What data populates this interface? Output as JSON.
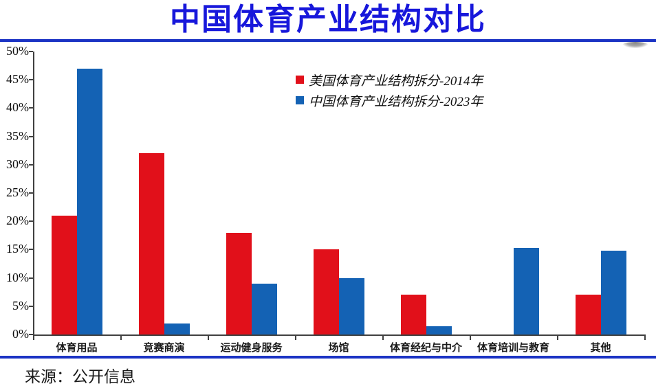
{
  "page": {
    "title": "中国体育产业结构对比",
    "source": "来源：公开信息"
  },
  "colors": {
    "title_blue": "#1717db",
    "rule_blue": "#1b33c4",
    "us_red": "#e1101a",
    "cn_blue": "#1462b4",
    "axis_gray": "#3f3f3f"
  },
  "chart_data": {
    "type": "bar",
    "title": "中国体育产业结构对比",
    "categories": [
      "体育用品",
      "竞赛商演",
      "运动健身服务",
      "场馆",
      "体育经纪与中介",
      "体育培训与教育",
      "其他"
    ],
    "series": [
      {
        "name": "美国体育产业结构拆分-2014年",
        "color": "#e1101a",
        "values": [
          21,
          32,
          18,
          15,
          7,
          0,
          7
        ]
      },
      {
        "name": "中国体育产业结构拆分-2023年",
        "color": "#1462b4",
        "values": [
          47,
          2,
          9,
          10,
          1.5,
          15.3,
          14.8
        ]
      }
    ],
    "xlabel": "",
    "ylabel": "",
    "ylim": [
      0,
      50
    ],
    "ytick_step": 5,
    "ytick_labels": [
      "0%",
      "5%",
      "10%",
      "15%",
      "20%",
      "25%",
      "30%",
      "35%",
      "40%",
      "45%",
      "50%"
    ],
    "grid": false,
    "legend_position": "inside-top-center"
  }
}
